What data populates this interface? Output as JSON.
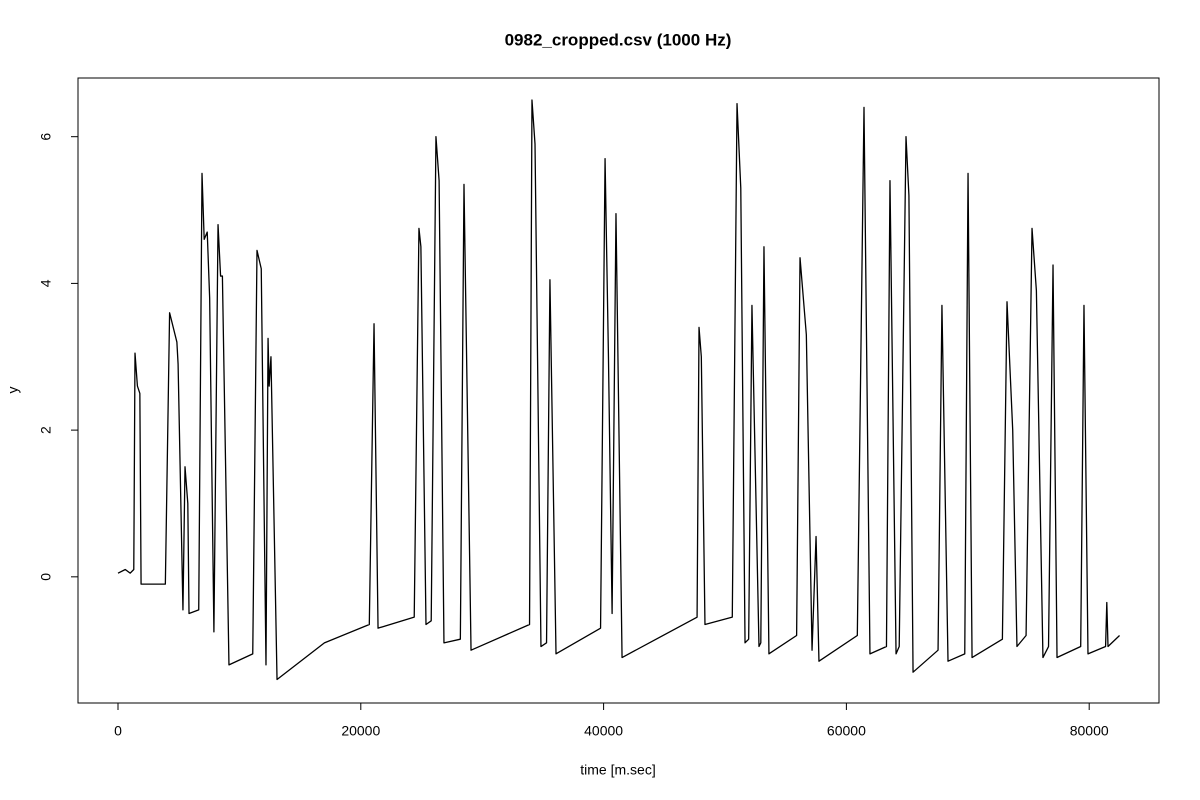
{
  "chart_data": {
    "type": "line",
    "title": "0982_cropped.csv (1000 Hz)",
    "xlabel": "time [m.sec]",
    "ylabel": "y",
    "x": [
      0,
      600,
      1000,
      1300,
      1400,
      1600,
      1800,
      1900,
      3900,
      4250,
      4850,
      4950,
      5350,
      5520,
      5750,
      5850,
      6650,
      6920,
      7100,
      7350,
      7550,
      7900,
      8240,
      8450,
      8600,
      9140,
      11100,
      11450,
      11800,
      12190,
      12360,
      12450,
      12600,
      13100,
      17000,
      20700,
      21090,
      21420,
      24400,
      24790,
      24950,
      25370,
      25800,
      26190,
      26450,
      26850,
      28200,
      28500,
      29080,
      33900,
      34100,
      34350,
      34840,
      35300,
      35580,
      36080,
      39750,
      40120,
      40400,
      40700,
      41020,
      41520,
      47700,
      47860,
      48050,
      48350,
      50600,
      50990,
      51300,
      51650,
      51950,
      52220,
      52800,
      52950,
      53210,
      53620,
      55900,
      56180,
      56700,
      57170,
      57500,
      57740,
      60900,
      61450,
      61940,
      63300,
      63590,
      64090,
      64350,
      64910,
      65150,
      65490,
      67550,
      67870,
      68370,
      69750,
      70020,
      70350,
      72850,
      73230,
      73700,
      74050,
      74800,
      75290,
      75650,
      76190,
      76650,
      77020,
      77350,
      79300,
      79570,
      79900,
      81350,
      81450,
      81550,
      82500
    ],
    "series": [
      {
        "color": "#000000",
        "values": [
          0.05,
          0.1,
          0.05,
          0.1,
          3.05,
          2.6,
          2.5,
          -0.1,
          -0.1,
          3.6,
          3.2,
          2.9,
          -0.45,
          1.5,
          1.0,
          -0.5,
          -0.45,
          5.5,
          4.6,
          4.7,
          3.8,
          -0.75,
          4.8,
          4.1,
          4.1,
          -1.2,
          -1.05,
          4.45,
          4.2,
          -1.2,
          3.25,
          2.6,
          3.0,
          -1.4,
          -0.9,
          -0.65,
          3.45,
          -0.7,
          -0.55,
          4.75,
          4.5,
          -0.65,
          -0.6,
          6.0,
          5.4,
          -0.9,
          -0.85,
          5.35,
          -1.0,
          -0.65,
          6.5,
          5.9,
          -0.95,
          -0.9,
          4.05,
          -1.05,
          -0.7,
          5.7,
          3.0,
          -0.5,
          4.95,
          -1.1,
          -0.55,
          3.4,
          3.0,
          -0.65,
          -0.55,
          6.45,
          5.3,
          -0.9,
          -0.85,
          3.7,
          -0.95,
          -0.9,
          4.5,
          -1.05,
          -0.8,
          4.35,
          3.3,
          -1.0,
          0.55,
          -1.15,
          -0.8,
          6.4,
          -1.05,
          -0.95,
          5.4,
          -1.05,
          -0.95,
          6.0,
          5.2,
          -1.3,
          -1.0,
          3.7,
          -1.15,
          -1.05,
          5.5,
          -1.1,
          -0.85,
          3.75,
          2.0,
          -0.95,
          -0.8,
          4.75,
          3.9,
          -1.1,
          -0.95,
          4.25,
          -1.1,
          -0.95,
          3.7,
          -1.05,
          -0.95,
          -0.35,
          -0.95,
          -0.8
        ]
      }
    ],
    "xlim": [
      -3295,
      85750
    ],
    "ylim": [
      -1.72,
      6.8
    ],
    "xticks": [
      0,
      20000,
      40000,
      60000,
      80000
    ],
    "yticks": [
      0,
      2,
      4,
      6
    ]
  }
}
